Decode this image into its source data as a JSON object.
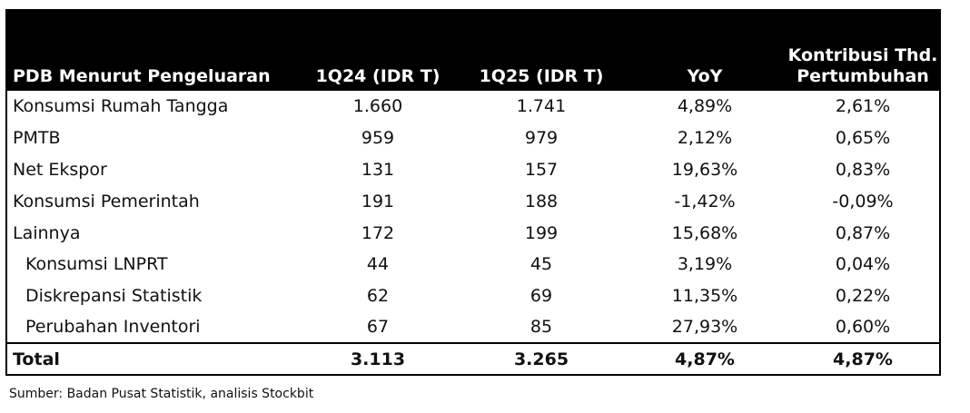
{
  "table": {
    "headers": [
      "PDB Menurut Pengeluaran",
      "1Q24 (IDR T)",
      "1Q25 (IDR T)",
      "YoY",
      "Kontribusi Thd. Pertumbuhan"
    ],
    "rows": [
      {
        "label": "Konsumsi Rumah Tangga",
        "q124": "1.660",
        "q125": "1.741",
        "yoy": "4,89%",
        "kontribusi": "2,61%"
      },
      {
        "label": "PMTB",
        "q124": "959",
        "q125": "979",
        "yoy": "2,12%",
        "kontribusi": "0,65%"
      },
      {
        "label": "Net Ekspor",
        "q124": "131",
        "q125": "157",
        "yoy": "19,63%",
        "kontribusi": "0,83%"
      },
      {
        "label": "Konsumsi Pemerintah",
        "q124": "191",
        "q125": "188",
        "yoy": "-1,42%",
        "kontribusi": "-0,09%"
      },
      {
        "label": "Lainnya",
        "q124": "172",
        "q125": "199",
        "yoy": "15,68%",
        "kontribusi": "0,87%"
      },
      {
        "label": "Konsumsi LNPRT",
        "q124": "44",
        "q125": "45",
        "yoy": "3,19%",
        "kontribusi": "0,04%"
      },
      {
        "label": "Diskrepansi Statistik",
        "q124": "62",
        "q125": "69",
        "yoy": "11,35%",
        "kontribusi": "0,22%"
      },
      {
        "label": "Perubahan Inventori",
        "q124": "67",
        "q125": "85",
        "yoy": "27,93%",
        "kontribusi": "0,60%"
      }
    ],
    "total": {
      "label": "Total",
      "q124": "3.113",
      "q125": "3.265",
      "yoy": "4,87%",
      "kontribusi": "4,87%"
    }
  },
  "source": "Sumber: Badan Pusat Statistik, analisis Stockbit",
  "colors": {
    "header_bg": "#000000",
    "header_text": "#ffffff",
    "text": "#111111"
  }
}
